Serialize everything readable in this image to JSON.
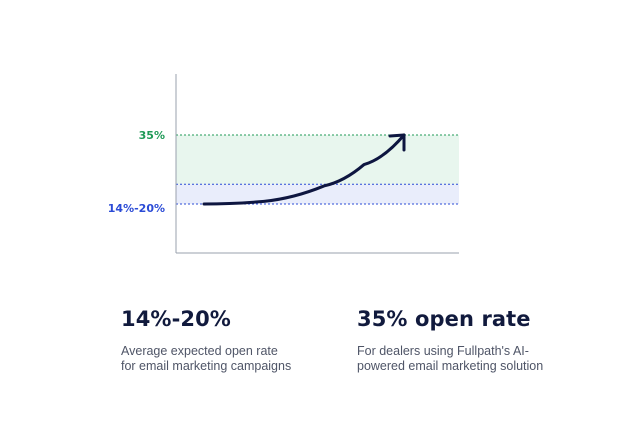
{
  "chart_data": {
    "type": "line",
    "title": "",
    "xlabel": "",
    "ylabel": "",
    "ylim": [
      0,
      45
    ],
    "bands": [
      {
        "label": "14%-20%",
        "from": 14,
        "to": 20,
        "color": "#e9edfb",
        "line_color": "#2b4bd6",
        "label_color": "#2b4bd6"
      },
      {
        "label": "35%",
        "from": 20,
        "to": 35,
        "color": "#e8f6ee",
        "line_color": "#1f9a57",
        "label_color": "#1f9a57"
      }
    ],
    "series": [
      {
        "color": "#0e1640",
        "arrow": true,
        "points": [
          [
            0,
            14
          ],
          [
            0.3,
            14.8
          ],
          [
            0.6,
            19.5
          ],
          [
            0.8,
            26
          ],
          [
            1,
            35
          ]
        ]
      }
    ]
  },
  "stats": [
    {
      "value": "14%-20%",
      "description_lines": [
        "Average expected open rate",
        "for email marketing campaigns"
      ]
    },
    {
      "value": "35% open rate",
      "description_lines": [
        "For dealers using Fullpath's AI-",
        "powered email marketing solution"
      ]
    }
  ]
}
